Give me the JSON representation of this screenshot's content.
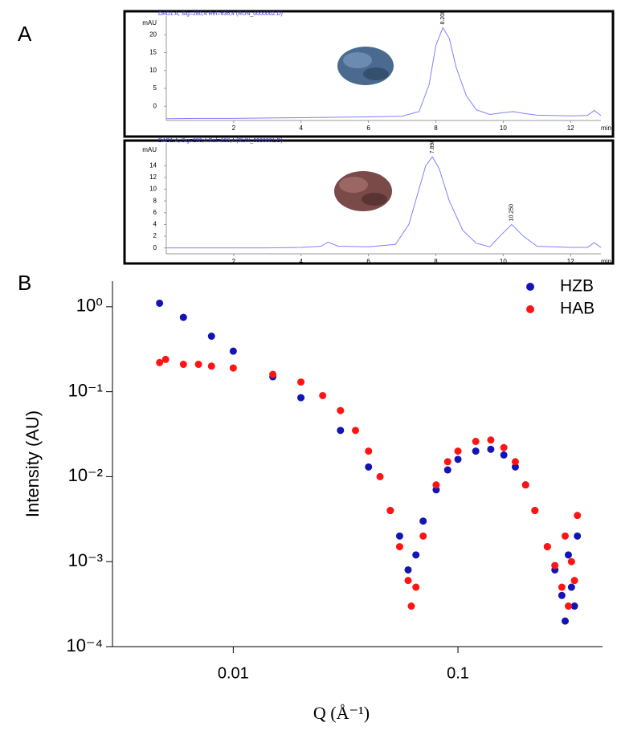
{
  "chart_data": [
    {
      "type": "line",
      "panel_label": "A",
      "title": "DAD1 A, Sig=280,4 Ref=636,4 (RUN_0000002.D)",
      "y_label": "mAU",
      "x_label": "min",
      "xlim": [
        0,
        12.9
      ],
      "ylim": [
        -4,
        23
      ],
      "xticks": [
        2,
        4,
        6,
        8,
        10,
        12
      ],
      "yticks": [
        0,
        5,
        10,
        15,
        20
      ],
      "x": [
        0,
        1,
        2,
        3,
        4,
        5,
        6,
        7,
        7.5,
        7.8,
        8,
        8.208,
        8.4,
        8.6,
        8.9,
        9.2,
        9.6,
        10,
        10.3,
        10.6,
        11,
        12,
        12.5,
        12.7,
        12.9
      ],
      "series": [
        {
          "name": "DAD1 A",
          "color": "#8080ff",
          "values": [
            -3.5,
            -3.4,
            -3.4,
            -3.3,
            -3.2,
            -3.1,
            -3,
            -2.8,
            -1.5,
            6,
            17,
            22,
            19,
            11,
            3,
            -1,
            -2.3,
            -1.8,
            -1.5,
            -2,
            -2.5,
            -2.7,
            -2.6,
            -1.2,
            -2.6
          ]
        }
      ],
      "peak_labels": [
        8.208
      ]
    },
    {
      "type": "line",
      "title": "DAD1 A, Sig=280,4 Ref=636,4 (RUN_0000001.D)",
      "y_label": "mAU",
      "x_label": "min",
      "xlim": [
        0,
        12.9
      ],
      "ylim": [
        -1,
        16.5
      ],
      "xticks": [
        2,
        4,
        6,
        8,
        10,
        12
      ],
      "yticks": [
        0,
        2,
        4,
        6,
        8,
        10,
        12,
        14
      ],
      "x": [
        0,
        1,
        2,
        3,
        4,
        4.6,
        4.8,
        5.1,
        6,
        6.8,
        7.2,
        7.5,
        7.7,
        7.898,
        8.1,
        8.4,
        8.8,
        9.2,
        9.6,
        9.9,
        10.25,
        10.6,
        11,
        12,
        12.5,
        12.7,
        12.9
      ],
      "series": [
        {
          "name": "DAD1 A",
          "color": "#8080ff",
          "values": [
            0,
            0,
            0,
            0,
            0.1,
            0.3,
            1,
            0.3,
            0.2,
            0.6,
            4,
            10,
            14,
            15.5,
            13.5,
            8,
            3,
            0.8,
            0.2,
            2,
            4,
            2,
            0.3,
            0.1,
            0.1,
            0.9,
            0.1
          ]
        }
      ],
      "peak_labels": [
        7.898,
        {
          "value": 10.25,
          "label": "10.250"
        }
      ]
    },
    {
      "type": "scatter",
      "panel_label": "B",
      "x_label": "Q (Å⁻¹)",
      "y_label": "Intensity (AU)",
      "xscale": "log",
      "yscale": "log",
      "legend": "upper right",
      "xlim": [
        0.0029,
        0.44
      ],
      "ylim": [
        0.0001,
        2
      ],
      "xticks": [
        0.01,
        0.1
      ],
      "yticks": [
        {
          "value": 1,
          "label": "10⁰"
        },
        {
          "value": 0.1,
          "label": "10⁻¹"
        },
        {
          "value": 0.01,
          "label": "10⁻²"
        },
        {
          "value": 0.001,
          "label": "10⁻³"
        },
        {
          "value": 0.0001,
          "label": "10⁻⁴"
        }
      ],
      "series": [
        {
          "name": "HZB",
          "color": "#1414b4",
          "x": [
            0.0047,
            0.006,
            0.008,
            0.01,
            0.015,
            0.02,
            0.03,
            0.04,
            0.05,
            0.055,
            0.06,
            0.065,
            0.07,
            0.08,
            0.09,
            0.1,
            0.12,
            0.14,
            0.16,
            0.18,
            0.2,
            0.22,
            0.25,
            0.27,
            0.29,
            0.3,
            0.31,
            0.32,
            0.33,
            0.34
          ],
          "values": [
            1.1,
            0.75,
            0.45,
            0.3,
            0.15,
            0.085,
            0.035,
            0.013,
            0.004,
            0.002,
            0.0008,
            0.0012,
            0.003,
            0.007,
            0.012,
            0.016,
            0.02,
            0.021,
            0.018,
            0.013,
            0.008,
            0.004,
            0.0015,
            0.0008,
            0.0004,
            0.0002,
            0.0012,
            0.0005,
            0.0003,
            0.002
          ]
        },
        {
          "name": "HAB",
          "color": "#ff1414",
          "x": [
            0.0047,
            0.005,
            0.006,
            0.007,
            0.008,
            0.01,
            0.015,
            0.02,
            0.025,
            0.03,
            0.035,
            0.04,
            0.045,
            0.05,
            0.055,
            0.06,
            0.062,
            0.065,
            0.07,
            0.08,
            0.09,
            0.1,
            0.12,
            0.14,
            0.16,
            0.18,
            0.2,
            0.22,
            0.25,
            0.27,
            0.29,
            0.3,
            0.31,
            0.32,
            0.33,
            0.34
          ],
          "values": [
            0.22,
            0.24,
            0.21,
            0.21,
            0.2,
            0.19,
            0.16,
            0.13,
            0.09,
            0.06,
            0.035,
            0.02,
            0.01,
            0.004,
            0.0015,
            0.0006,
            0.0003,
            0.0005,
            0.002,
            0.008,
            0.015,
            0.02,
            0.026,
            0.027,
            0.022,
            0.015,
            0.008,
            0.004,
            0.0015,
            0.0009,
            0.0005,
            0.002,
            0.0003,
            0.001,
            0.0006,
            0.0035
          ]
        }
      ]
    }
  ]
}
